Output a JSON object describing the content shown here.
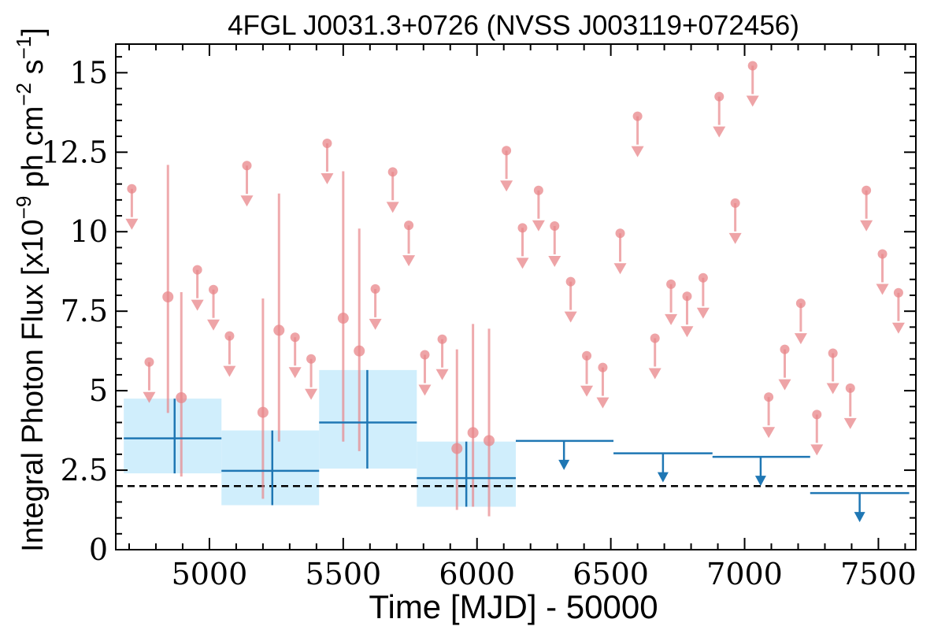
{
  "chart_data": {
    "type": "scatter",
    "title": "4FGL J0031.3+0726 (NVSS J003119+072456)",
    "xlabel": "Time [MJD] - 50000",
    "ylabel": "Integral Photon Flux [x10",
    "ylabel_exp1": "−9",
    "ylabel_mid": " ph cm",
    "ylabel_exp2": "−2",
    "ylabel_mid2": " s",
    "ylabel_exp3": "−1",
    "ylabel_end": "]",
    "xlim": [
      4650,
      7640
    ],
    "ylim": [
      0,
      15.9
    ],
    "x_ticks": [
      5000,
      5500,
      6000,
      6500,
      7000,
      7500
    ],
    "x_tick_labels": [
      "5000",
      "5500",
      "6000",
      "6500",
      "7000",
      "7500"
    ],
    "y_ticks": [
      0,
      2.5,
      5,
      7.5,
      10,
      12.5,
      15
    ],
    "y_tick_labels": [
      "0",
      "2.5",
      "5",
      "7.5",
      "10",
      "12.5",
      "15"
    ],
    "reference_line": {
      "y": 2.0,
      "style": "dashed",
      "color": "#000000"
    },
    "colors": {
      "short_bins": "#e8868a",
      "long_bins": "#1f77b4",
      "long_band": "#d0eefc"
    },
    "short_bins": {
      "detections": [
        {
          "x": 4845,
          "y": 7.95,
          "err_lo": 4.3,
          "err_hi": 12.1
        },
        {
          "x": 4895,
          "y": 4.78,
          "err_lo": 2.3,
          "err_hi": 8.1
        },
        {
          "x": 5200,
          "y": 4.32,
          "err_lo": 1.6,
          "err_hi": 7.9
        },
        {
          "x": 5260,
          "y": 6.9,
          "err_lo": 3.4,
          "err_hi": 11.2
        },
        {
          "x": 5500,
          "y": 7.28,
          "err_lo": 3.4,
          "err_hi": 11.9
        },
        {
          "x": 5560,
          "y": 6.25,
          "err_lo": 3.1,
          "err_hi": 10.1
        },
        {
          "x": 5925,
          "y": 3.18,
          "err_lo": 1.25,
          "err_hi": 6.3
        },
        {
          "x": 5985,
          "y": 3.68,
          "err_lo": 1.35,
          "err_hi": 7.1
        },
        {
          "x": 6045,
          "y": 3.43,
          "err_lo": 1.05,
          "err_hi": 6.95
        }
      ],
      "upper_limits": [
        {
          "x": 4710,
          "y": 11.35
        },
        {
          "x": 4775,
          "y": 5.9
        },
        {
          "x": 4955,
          "y": 8.8
        },
        {
          "x": 5015,
          "y": 8.18
        },
        {
          "x": 5075,
          "y": 6.72
        },
        {
          "x": 5140,
          "y": 12.08
        },
        {
          "x": 5320,
          "y": 6.68
        },
        {
          "x": 5380,
          "y": 6.0
        },
        {
          "x": 5440,
          "y": 12.78
        },
        {
          "x": 5620,
          "y": 8.2
        },
        {
          "x": 5685,
          "y": 11.88
        },
        {
          "x": 5745,
          "y": 10.2
        },
        {
          "x": 5805,
          "y": 6.13
        },
        {
          "x": 5870,
          "y": 6.62
        },
        {
          "x": 6110,
          "y": 12.55
        },
        {
          "x": 6170,
          "y": 10.12
        },
        {
          "x": 6230,
          "y": 11.3
        },
        {
          "x": 6290,
          "y": 10.18
        },
        {
          "x": 6350,
          "y": 8.43
        },
        {
          "x": 6410,
          "y": 6.1
        },
        {
          "x": 6470,
          "y": 5.73
        },
        {
          "x": 6535,
          "y": 9.95
        },
        {
          "x": 6600,
          "y": 13.63
        },
        {
          "x": 6665,
          "y": 6.65
        },
        {
          "x": 6725,
          "y": 8.35
        },
        {
          "x": 6785,
          "y": 7.97
        },
        {
          "x": 6845,
          "y": 8.55
        },
        {
          "x": 6905,
          "y": 14.25
        },
        {
          "x": 6965,
          "y": 10.9
        },
        {
          "x": 7030,
          "y": 15.22
        },
        {
          "x": 7090,
          "y": 4.8
        },
        {
          "x": 7150,
          "y": 6.3
        },
        {
          "x": 7210,
          "y": 7.75
        },
        {
          "x": 7270,
          "y": 4.25
        },
        {
          "x": 7330,
          "y": 6.18
        },
        {
          "x": 7395,
          "y": 5.08
        },
        {
          "x": 7455,
          "y": 11.3
        },
        {
          "x": 7515,
          "y": 9.3
        },
        {
          "x": 7575,
          "y": 8.08
        }
      ]
    },
    "long_bins": {
      "detections": [
        {
          "x": 4870,
          "x_lo": 4680,
          "x_hi": 5045,
          "y": 3.5,
          "err_lo": 2.4,
          "err_hi": 4.75
        },
        {
          "x": 5235,
          "x_lo": 5045,
          "x_hi": 5410,
          "y": 2.48,
          "err_lo": 1.4,
          "err_hi": 3.75
        },
        {
          "x": 5590,
          "x_lo": 5410,
          "x_hi": 5775,
          "y": 4.0,
          "err_lo": 2.55,
          "err_hi": 5.65
        },
        {
          "x": 5960,
          "x_lo": 5775,
          "x_hi": 6145,
          "y": 2.25,
          "err_lo": 1.35,
          "err_hi": 3.4
        }
      ],
      "upper_limits": [
        {
          "x_lo": 6145,
          "x_hi": 6510,
          "x_mid": 6325,
          "y": 3.42
        },
        {
          "x_lo": 6510,
          "x_hi": 6880,
          "x_mid": 6695,
          "y": 3.03
        },
        {
          "x_lo": 6880,
          "x_hi": 7245,
          "x_mid": 7060,
          "y": 2.92
        },
        {
          "x_lo": 7245,
          "x_hi": 7615,
          "x_mid": 7430,
          "y": 1.78
        }
      ]
    }
  }
}
